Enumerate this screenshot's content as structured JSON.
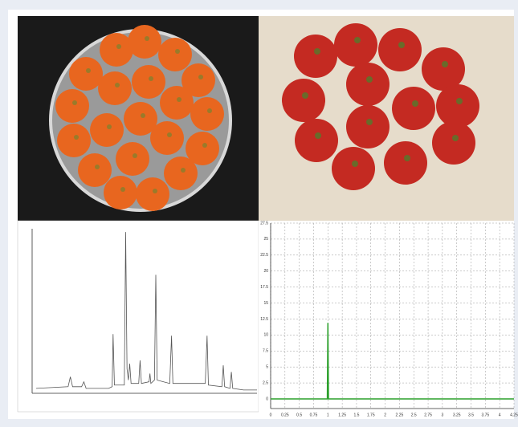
{
  "chart_data": [
    {
      "type": "line",
      "x": [
        0.9,
        8,
        8.5,
        9,
        11,
        11.5,
        12,
        17,
        17.8,
        18.0,
        18.3,
        20.5,
        20.8,
        21.1,
        21.4,
        21.7,
        22,
        23.7,
        24,
        24.3,
        26,
        26.2,
        26.4,
        27.2,
        27.5,
        27.8,
        30.6,
        31.0,
        31.3,
        38.5,
        38.9,
        39.2,
        42.2,
        42.5,
        42.8,
        44,
        44.3,
        44.6,
        47,
        50
      ],
      "series": [
        {
          "color": "#555555",
          "values": [
            3,
            4,
            10,
            4,
            4,
            7,
            3,
            3,
            4,
            36,
            5,
            5,
            98,
            15,
            8,
            18,
            6,
            6,
            20,
            6,
            7,
            12,
            6,
            8,
            72,
            8,
            6,
            35,
            6,
            6,
            35,
            5,
            4,
            17,
            4,
            3,
            13,
            3,
            2,
            2
          ]
        }
      ],
      "xlim": [
        0,
        50
      ],
      "ylim": [
        0,
        100
      ]
    },
    {
      "type": "line",
      "x": [
        0,
        0.99,
        1.0,
        1.01,
        4.25
      ],
      "series": [
        {
          "color": "#2ca02c",
          "values": [
            0,
            0,
            11.9,
            0,
            0
          ]
        }
      ],
      "xlim": [
        0,
        4.25
      ],
      "ylim": [
        0,
        27.5
      ],
      "xticks": [
        0,
        0.25,
        0.5,
        0.75,
        1,
        1.25,
        1.5,
        1.75,
        2,
        2.25,
        2.5,
        2.75,
        3,
        3.25,
        3.5,
        3.75,
        4,
        4.25
      ],
      "yticks": [
        0,
        2.5,
        5,
        7.5,
        10,
        12.5,
        15,
        17.5,
        20,
        22.5,
        25,
        27.5
      ],
      "grid": true
    }
  ]
}
